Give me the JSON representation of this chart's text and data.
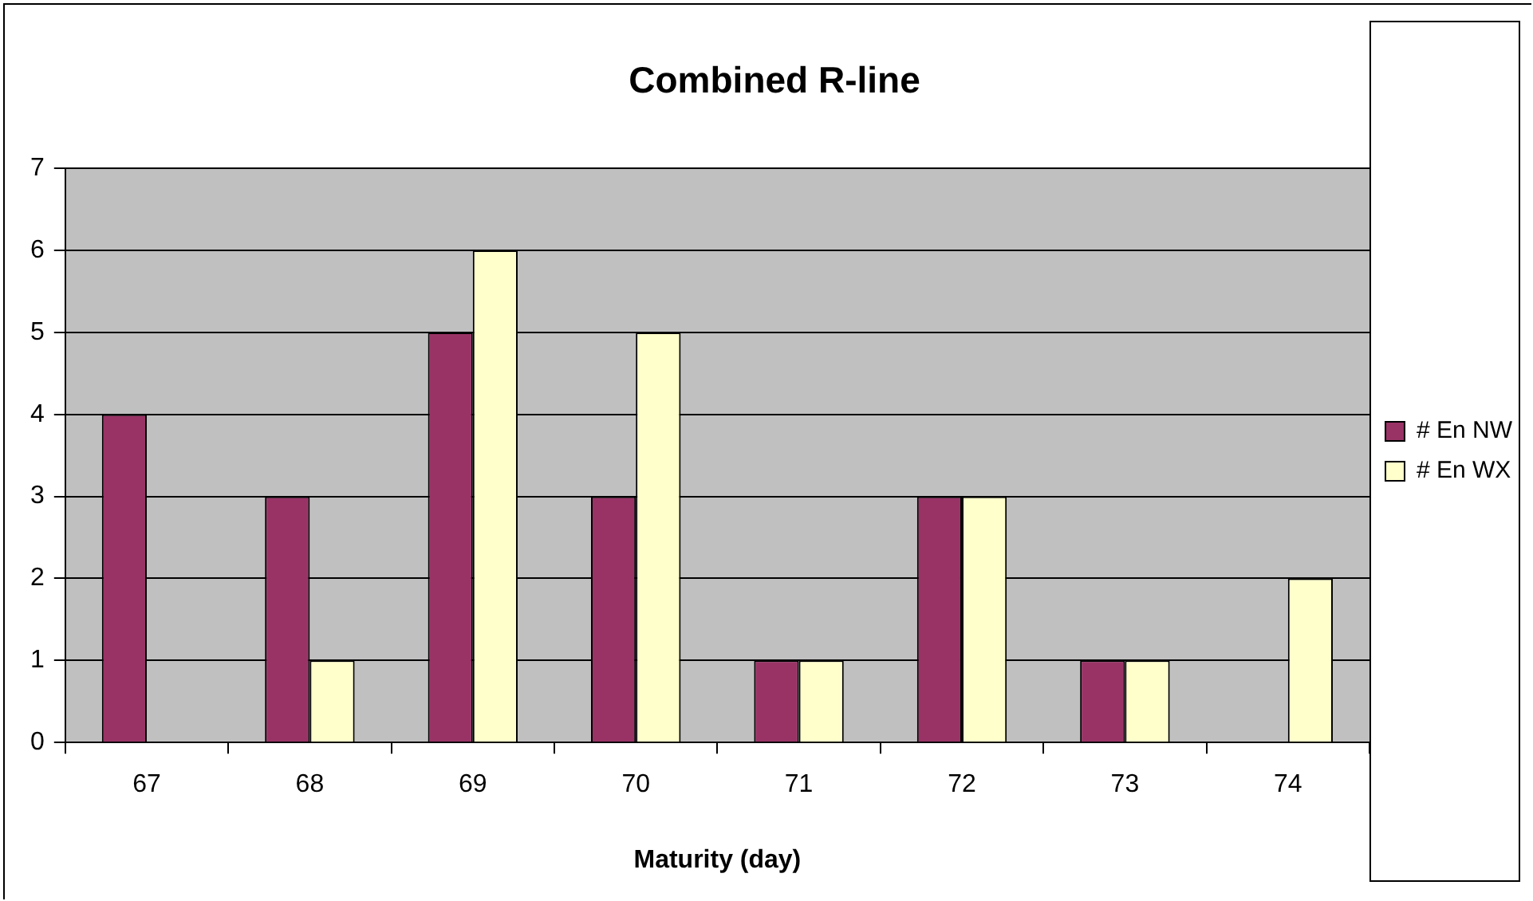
{
  "chart_data": {
    "type": "bar",
    "title": "Combined R-line",
    "xlabel": "Maturity (day)",
    "categories": [
      "67",
      "68",
      "69",
      "70",
      "71",
      "72",
      "73",
      "74"
    ],
    "series": [
      {
        "name": "# En NW",
        "color": "#993366",
        "values": [
          4,
          3,
          5,
          3,
          1,
          3,
          1,
          0
        ]
      },
      {
        "name": "# En WX",
        "color": "#ffffcc",
        "values": [
          0,
          1,
          6,
          5,
          1,
          3,
          1,
          2
        ]
      }
    ],
    "ylim": [
      0,
      7
    ],
    "yticks": [
      0,
      1,
      2,
      3,
      4,
      5,
      6,
      7
    ],
    "grid": "y",
    "legend": "right"
  }
}
